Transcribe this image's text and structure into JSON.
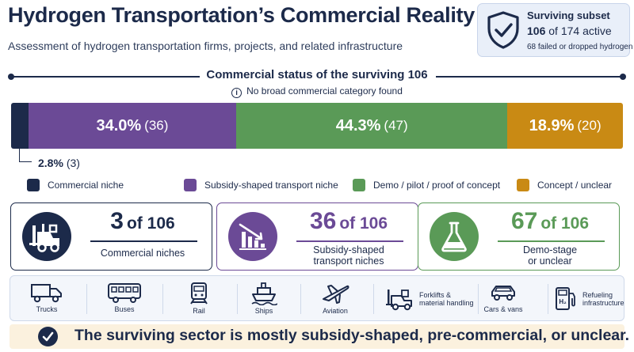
{
  "header": {
    "title": "Hydrogen Transportation’s Commercial Reality",
    "subtitle": "Assessment of hydrogen transportation firms, projects, and related infrastructure"
  },
  "summary": {
    "label": "Surviving subset",
    "count": "106",
    "of_text": "of 174 active",
    "note": "68 failed or dropped hydrogen",
    "icon": "shield-check-icon"
  },
  "section": {
    "heading": "Commercial status of the surviving 106",
    "note": "No broad commercial category found"
  },
  "chart_data": {
    "type": "bar",
    "orientation": "horizontal-stacked",
    "categories": [
      "Commercial niche",
      "Subsidy-shaped transport niche",
      "Demo / pilot / proof of concept",
      "Concept / unclear"
    ],
    "values": [
      3,
      36,
      47,
      20
    ],
    "percent_labels": [
      "2.8%",
      "34.0%",
      "44.3%",
      "18.9%"
    ],
    "count_labels": [
      "(3)",
      "(36)",
      "(47)",
      "(20)"
    ],
    "total": 106,
    "colors": [
      "#1c2a4a",
      "#6b4a96",
      "#5a9a57",
      "#c98a14"
    ]
  },
  "kpis": [
    {
      "number": "3",
      "of": "of 106",
      "caption": "Commercial niches",
      "color": "#1c2a4a",
      "icon": "forklift-icon"
    },
    {
      "number": "36",
      "of": "of 106",
      "caption": "Subsidy-shaped transport niches",
      "color": "#6b4a96",
      "icon": "declining-bar-chart-icon"
    },
    {
      "number": "67",
      "of": "of 106",
      "caption": "Demo-stage or unclear",
      "color": "#5a9a57",
      "icon": "flask-icon"
    }
  ],
  "modes": [
    {
      "label": "Trucks",
      "icon": "truck-icon"
    },
    {
      "label": "Buses",
      "icon": "bus-icon"
    },
    {
      "label": "Rail",
      "icon": "train-icon"
    },
    {
      "label": "Ships",
      "icon": "ship-icon"
    },
    {
      "label": "Aviation",
      "icon": "airplane-icon"
    },
    {
      "label": "Forklifts & material handling",
      "line1": "Forklifts &",
      "line2": "material handling",
      "icon": "forklift-icon"
    },
    {
      "label": "Cars & vans",
      "icon": "car-icon"
    },
    {
      "label": "Refueling infrastructure",
      "line1": "Refueling",
      "line2": "infrastructure",
      "icon": "hydrogen-pump-icon"
    }
  ],
  "banner": {
    "text": "The surviving sector is mostly subsidy-shaped, pre-commercial, or unclear.",
    "icon": "check-circle-icon"
  }
}
